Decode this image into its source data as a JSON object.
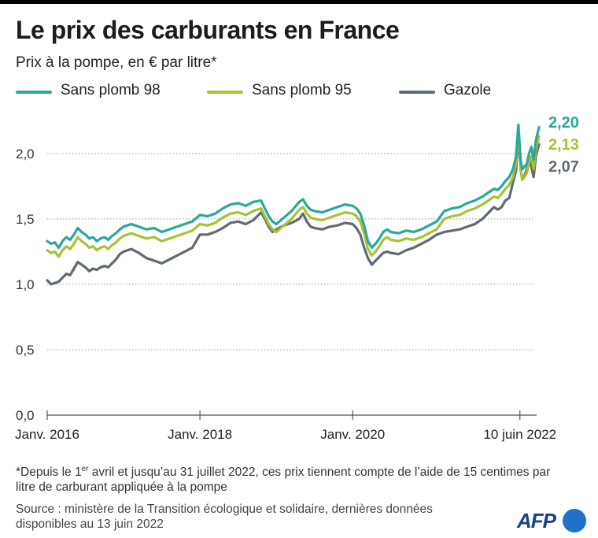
{
  "title": "Le prix des carburants en France",
  "subtitle": "Prix à la pompe, en € par litre*",
  "legend": [
    {
      "label": "Sans plomb 98",
      "color": "#2ba89a"
    },
    {
      "label": "Sans plomb 95",
      "color": "#a8c236"
    },
    {
      "label": "Gazole",
      "color": "#5e6b74"
    }
  ],
  "footnote": {
    "prefix": "*Depuis le 1",
    "sup": "er",
    "suffix": " avril et jusqu’au 31 juillet 2022, ces prix tiennent compte de l’aide de 15 centimes par litre de carburant appliquée à la pompe"
  },
  "source": "Source : ministère de la Transition écologique et solidaire, dernières données disponibles au 13 juin 2022",
  "logo_text": "AFP",
  "chart_data": {
    "type": "line",
    "title": "Le prix des carburants en France",
    "ylabel": "Prix à la pompe, en € par litre",
    "xlabel": "",
    "ylim": [
      0,
      2.3
    ],
    "xlim": [
      2016.0,
      2022.45
    ],
    "yticks": [
      {
        "value": 0.0,
        "label": "0,0"
      },
      {
        "value": 0.5,
        "label": "0,5"
      },
      {
        "value": 1.0,
        "label": "1,0"
      },
      {
        "value": 1.5,
        "label": "1,5"
      },
      {
        "value": 2.0,
        "label": "2,0"
      }
    ],
    "xticks": [
      {
        "value": 2016.0,
        "label": "Janv. 2016"
      },
      {
        "value": 2018.0,
        "label": "Janv. 2018"
      },
      {
        "value": 2020.0,
        "label": "Janv. 2020"
      },
      {
        "value": 2022.19,
        "label": "10 juin 2022"
      }
    ],
    "end_labels": [
      "2,20",
      "2,13",
      "2,07"
    ],
    "series": [
      {
        "name": "Sans plomb 98",
        "color": "#2ba89a",
        "x": [
          2016.0,
          2016.05,
          2016.1,
          2016.15,
          2016.2,
          2016.25,
          2016.3,
          2016.35,
          2016.4,
          2016.45,
          2016.5,
          2016.55,
          2016.6,
          2016.65,
          2016.7,
          2016.75,
          2016.8,
          2016.85,
          2016.9,
          2016.95,
          2017.0,
          2017.1,
          2017.2,
          2017.3,
          2017.4,
          2017.5,
          2017.6,
          2017.7,
          2017.8,
          2017.9,
          2018.0,
          2018.1,
          2018.2,
          2018.3,
          2018.4,
          2018.5,
          2018.6,
          2018.7,
          2018.8,
          2018.85,
          2018.9,
          2018.95,
          2019.0,
          2019.1,
          2019.2,
          2019.3,
          2019.35,
          2019.4,
          2019.45,
          2019.5,
          2019.6,
          2019.7,
          2019.8,
          2019.9,
          2020.0,
          2020.05,
          2020.1,
          2020.15,
          2020.2,
          2020.25,
          2020.3,
          2020.35,
          2020.4,
          2020.45,
          2020.5,
          2020.6,
          2020.7,
          2020.8,
          2020.9,
          2021.0,
          2021.1,
          2021.2,
          2021.3,
          2021.4,
          2021.5,
          2021.6,
          2021.7,
          2021.8,
          2021.85,
          2021.9,
          2021.95,
          2022.0,
          2022.05,
          2022.1,
          2022.14,
          2022.17,
          2022.2,
          2022.22,
          2022.25,
          2022.28,
          2022.31,
          2022.34,
          2022.37,
          2022.4,
          2022.44
        ],
        "values": [
          1.33,
          1.31,
          1.32,
          1.28,
          1.33,
          1.36,
          1.34,
          1.38,
          1.43,
          1.4,
          1.38,
          1.35,
          1.36,
          1.33,
          1.35,
          1.36,
          1.34,
          1.37,
          1.39,
          1.42,
          1.44,
          1.46,
          1.44,
          1.42,
          1.43,
          1.4,
          1.42,
          1.44,
          1.46,
          1.48,
          1.53,
          1.52,
          1.54,
          1.58,
          1.61,
          1.62,
          1.6,
          1.63,
          1.64,
          1.58,
          1.52,
          1.48,
          1.46,
          1.51,
          1.56,
          1.63,
          1.65,
          1.6,
          1.57,
          1.56,
          1.55,
          1.57,
          1.59,
          1.61,
          1.6,
          1.58,
          1.54,
          1.45,
          1.33,
          1.28,
          1.31,
          1.35,
          1.4,
          1.42,
          1.4,
          1.39,
          1.41,
          1.4,
          1.42,
          1.45,
          1.48,
          1.56,
          1.58,
          1.59,
          1.62,
          1.64,
          1.67,
          1.71,
          1.73,
          1.72,
          1.75,
          1.79,
          1.82,
          1.88,
          1.98,
          2.22,
          1.95,
          1.88,
          1.9,
          1.92,
          2.0,
          2.05,
          1.95,
          2.1,
          2.2
        ]
      },
      {
        "name": "Sans plomb 95",
        "color": "#a8c236",
        "x": [
          2016.0,
          2016.05,
          2016.1,
          2016.15,
          2016.2,
          2016.25,
          2016.3,
          2016.35,
          2016.4,
          2016.45,
          2016.5,
          2016.55,
          2016.6,
          2016.65,
          2016.7,
          2016.75,
          2016.8,
          2016.85,
          2016.9,
          2016.95,
          2017.0,
          2017.1,
          2017.2,
          2017.3,
          2017.4,
          2017.5,
          2017.6,
          2017.7,
          2017.8,
          2017.9,
          2018.0,
          2018.1,
          2018.2,
          2018.3,
          2018.4,
          2018.5,
          2018.6,
          2018.7,
          2018.8,
          2018.85,
          2018.9,
          2018.95,
          2019.0,
          2019.1,
          2019.2,
          2019.3,
          2019.35,
          2019.4,
          2019.45,
          2019.5,
          2019.6,
          2019.7,
          2019.8,
          2019.9,
          2020.0,
          2020.05,
          2020.1,
          2020.15,
          2020.2,
          2020.25,
          2020.3,
          2020.35,
          2020.4,
          2020.45,
          2020.5,
          2020.6,
          2020.7,
          2020.8,
          2020.9,
          2021.0,
          2021.1,
          2021.2,
          2021.3,
          2021.4,
          2021.5,
          2021.6,
          2021.7,
          2021.8,
          2021.85,
          2021.9,
          2021.95,
          2022.0,
          2022.05,
          2022.1,
          2022.14,
          2022.17,
          2022.2,
          2022.22,
          2022.25,
          2022.28,
          2022.31,
          2022.34,
          2022.37,
          2022.4,
          2022.44
        ],
        "values": [
          1.26,
          1.24,
          1.25,
          1.21,
          1.26,
          1.29,
          1.27,
          1.31,
          1.36,
          1.33,
          1.31,
          1.28,
          1.29,
          1.26,
          1.28,
          1.29,
          1.27,
          1.3,
          1.32,
          1.35,
          1.37,
          1.39,
          1.37,
          1.35,
          1.36,
          1.33,
          1.35,
          1.37,
          1.39,
          1.41,
          1.46,
          1.45,
          1.47,
          1.51,
          1.54,
          1.55,
          1.53,
          1.56,
          1.58,
          1.52,
          1.46,
          1.42,
          1.4,
          1.45,
          1.5,
          1.57,
          1.59,
          1.54,
          1.51,
          1.5,
          1.49,
          1.51,
          1.53,
          1.55,
          1.54,
          1.52,
          1.48,
          1.39,
          1.27,
          1.22,
          1.25,
          1.29,
          1.34,
          1.36,
          1.34,
          1.33,
          1.35,
          1.34,
          1.36,
          1.39,
          1.42,
          1.5,
          1.52,
          1.53,
          1.56,
          1.58,
          1.61,
          1.65,
          1.67,
          1.66,
          1.69,
          1.73,
          1.76,
          1.82,
          1.92,
          2.2,
          1.88,
          1.8,
          1.82,
          1.85,
          1.93,
          1.98,
          1.88,
          2.03,
          2.13
        ]
      },
      {
        "name": "Gazole",
        "color": "#5e6b74",
        "x": [
          2016.0,
          2016.05,
          2016.1,
          2016.15,
          2016.2,
          2016.25,
          2016.3,
          2016.35,
          2016.4,
          2016.45,
          2016.5,
          2016.55,
          2016.6,
          2016.65,
          2016.7,
          2016.75,
          2016.8,
          2016.85,
          2016.9,
          2016.95,
          2017.0,
          2017.1,
          2017.2,
          2017.3,
          2017.4,
          2017.5,
          2017.6,
          2017.7,
          2017.8,
          2017.9,
          2018.0,
          2018.1,
          2018.2,
          2018.3,
          2018.4,
          2018.5,
          2018.6,
          2018.7,
          2018.8,
          2018.85,
          2018.9,
          2018.95,
          2019.0,
          2019.1,
          2019.2,
          2019.3,
          2019.35,
          2019.4,
          2019.45,
          2019.5,
          2019.6,
          2019.7,
          2019.8,
          2019.9,
          2020.0,
          2020.05,
          2020.1,
          2020.15,
          2020.2,
          2020.25,
          2020.3,
          2020.35,
          2020.4,
          2020.45,
          2020.5,
          2020.6,
          2020.7,
          2020.8,
          2020.9,
          2021.0,
          2021.1,
          2021.2,
          2021.3,
          2021.4,
          2021.5,
          2021.6,
          2021.7,
          2021.8,
          2021.85,
          2021.9,
          2021.95,
          2022.0,
          2022.05,
          2022.1,
          2022.14,
          2022.17,
          2022.2,
          2022.22,
          2022.25,
          2022.28,
          2022.31,
          2022.34,
          2022.37,
          2022.4,
          2022.44
        ],
        "values": [
          1.03,
          1.0,
          1.01,
          1.02,
          1.05,
          1.08,
          1.07,
          1.12,
          1.17,
          1.15,
          1.13,
          1.1,
          1.12,
          1.11,
          1.13,
          1.14,
          1.13,
          1.16,
          1.19,
          1.23,
          1.25,
          1.27,
          1.24,
          1.2,
          1.18,
          1.16,
          1.19,
          1.22,
          1.25,
          1.28,
          1.38,
          1.38,
          1.4,
          1.43,
          1.47,
          1.48,
          1.46,
          1.49,
          1.55,
          1.5,
          1.44,
          1.4,
          1.42,
          1.45,
          1.47,
          1.5,
          1.54,
          1.48,
          1.44,
          1.43,
          1.42,
          1.44,
          1.45,
          1.47,
          1.46,
          1.43,
          1.38,
          1.28,
          1.2,
          1.15,
          1.18,
          1.21,
          1.24,
          1.25,
          1.24,
          1.23,
          1.26,
          1.28,
          1.31,
          1.34,
          1.38,
          1.4,
          1.41,
          1.42,
          1.44,
          1.46,
          1.5,
          1.56,
          1.59,
          1.57,
          1.59,
          1.64,
          1.66,
          1.78,
          1.87,
          2.15,
          1.88,
          1.8,
          1.83,
          1.88,
          1.95,
          1.9,
          1.82,
          1.98,
          2.07
        ]
      }
    ]
  }
}
